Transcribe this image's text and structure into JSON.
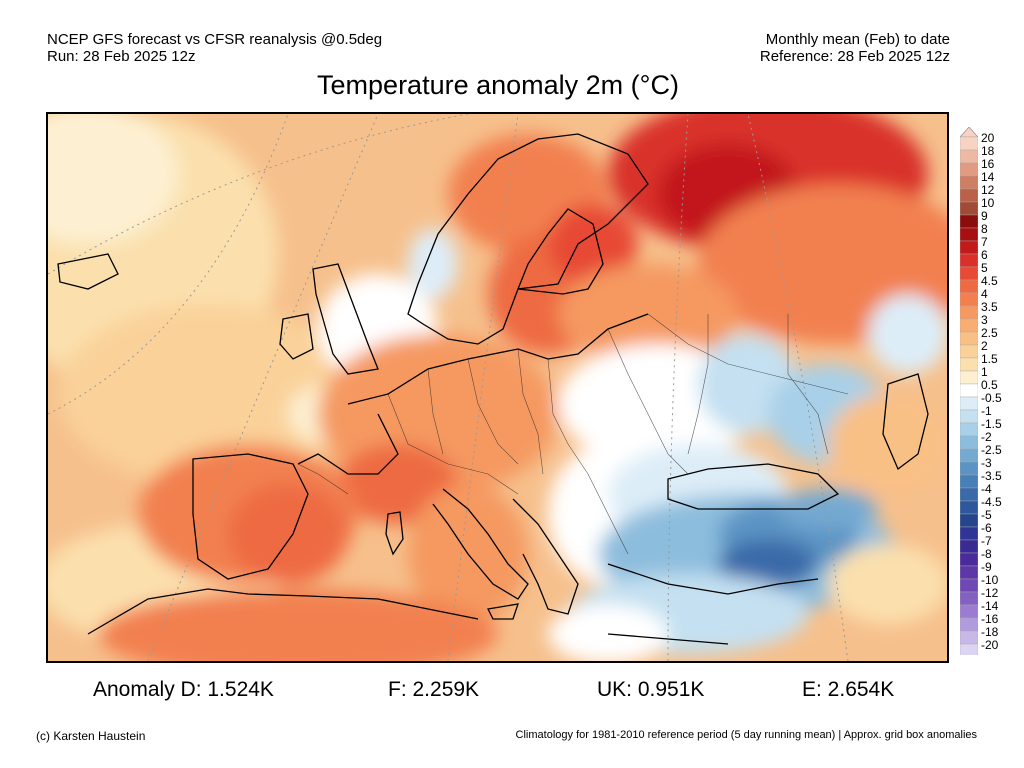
{
  "header": {
    "left_line1": "NCEP GFS forecast vs CFSR reanalysis @0.5deg",
    "left_line2": "Run: 28 Feb 2025 12z",
    "right_line1": "Monthly mean (Feb) to date",
    "right_line2": "Reference: 28 Feb 2025 12z"
  },
  "title": "Temperature anomaly 2m (°C)",
  "legend": {
    "labels": [
      "20",
      "18",
      "16",
      "14",
      "12",
      "10",
      "9",
      "8",
      "7",
      "6",
      "5",
      "4.5",
      "4",
      "3.5",
      "3",
      "2.5",
      "2",
      "1.5",
      "1",
      "0.5",
      "-0.5",
      "-1",
      "-1.5",
      "-2",
      "-2.5",
      "-3",
      "-3.5",
      "-4",
      "-4.5",
      "-5",
      "-6",
      "-7",
      "-8",
      "-9",
      "-10",
      "-12",
      "-14",
      "-16",
      "-18",
      "-20"
    ],
    "colors": [
      "#f7d3c3",
      "#eeb9a4",
      "#e09b82",
      "#cd7e63",
      "#b96249",
      "#a14a35",
      "#8c0d0d",
      "#a80f12",
      "#c2191a",
      "#d9302a",
      "#e74a35",
      "#ee6a42",
      "#f2804f",
      "#f59961",
      "#f8ad73",
      "#f9c086",
      "#fad199",
      "#fbe0ad",
      "#fdf0d2",
      "#ffffff",
      "#ddedf8",
      "#c4e0f1",
      "#a8d0e8",
      "#8dbddd",
      "#74a9d1",
      "#5b94c4",
      "#477fb7",
      "#3a6aa9",
      "#2f579b",
      "#26458c",
      "#2f3596",
      "#3a2a94",
      "#4b2b9b",
      "#5d37a7",
      "#7048b5",
      "#8560c3",
      "#9b7cd0",
      "#b19add",
      "#c7b8e8",
      "#ddd3f2"
    ]
  },
  "stats": {
    "d": "Anomaly D: 1.524K",
    "f": "F: 2.259K",
    "uk": "UK: 0.951K",
    "e": "E: 2.654K"
  },
  "footer": {
    "credit": "(c) Karsten Haustein",
    "note": "Climatology for 1981-2010 reference period (5 day running mean) | Approx. grid box anomalies"
  }
}
